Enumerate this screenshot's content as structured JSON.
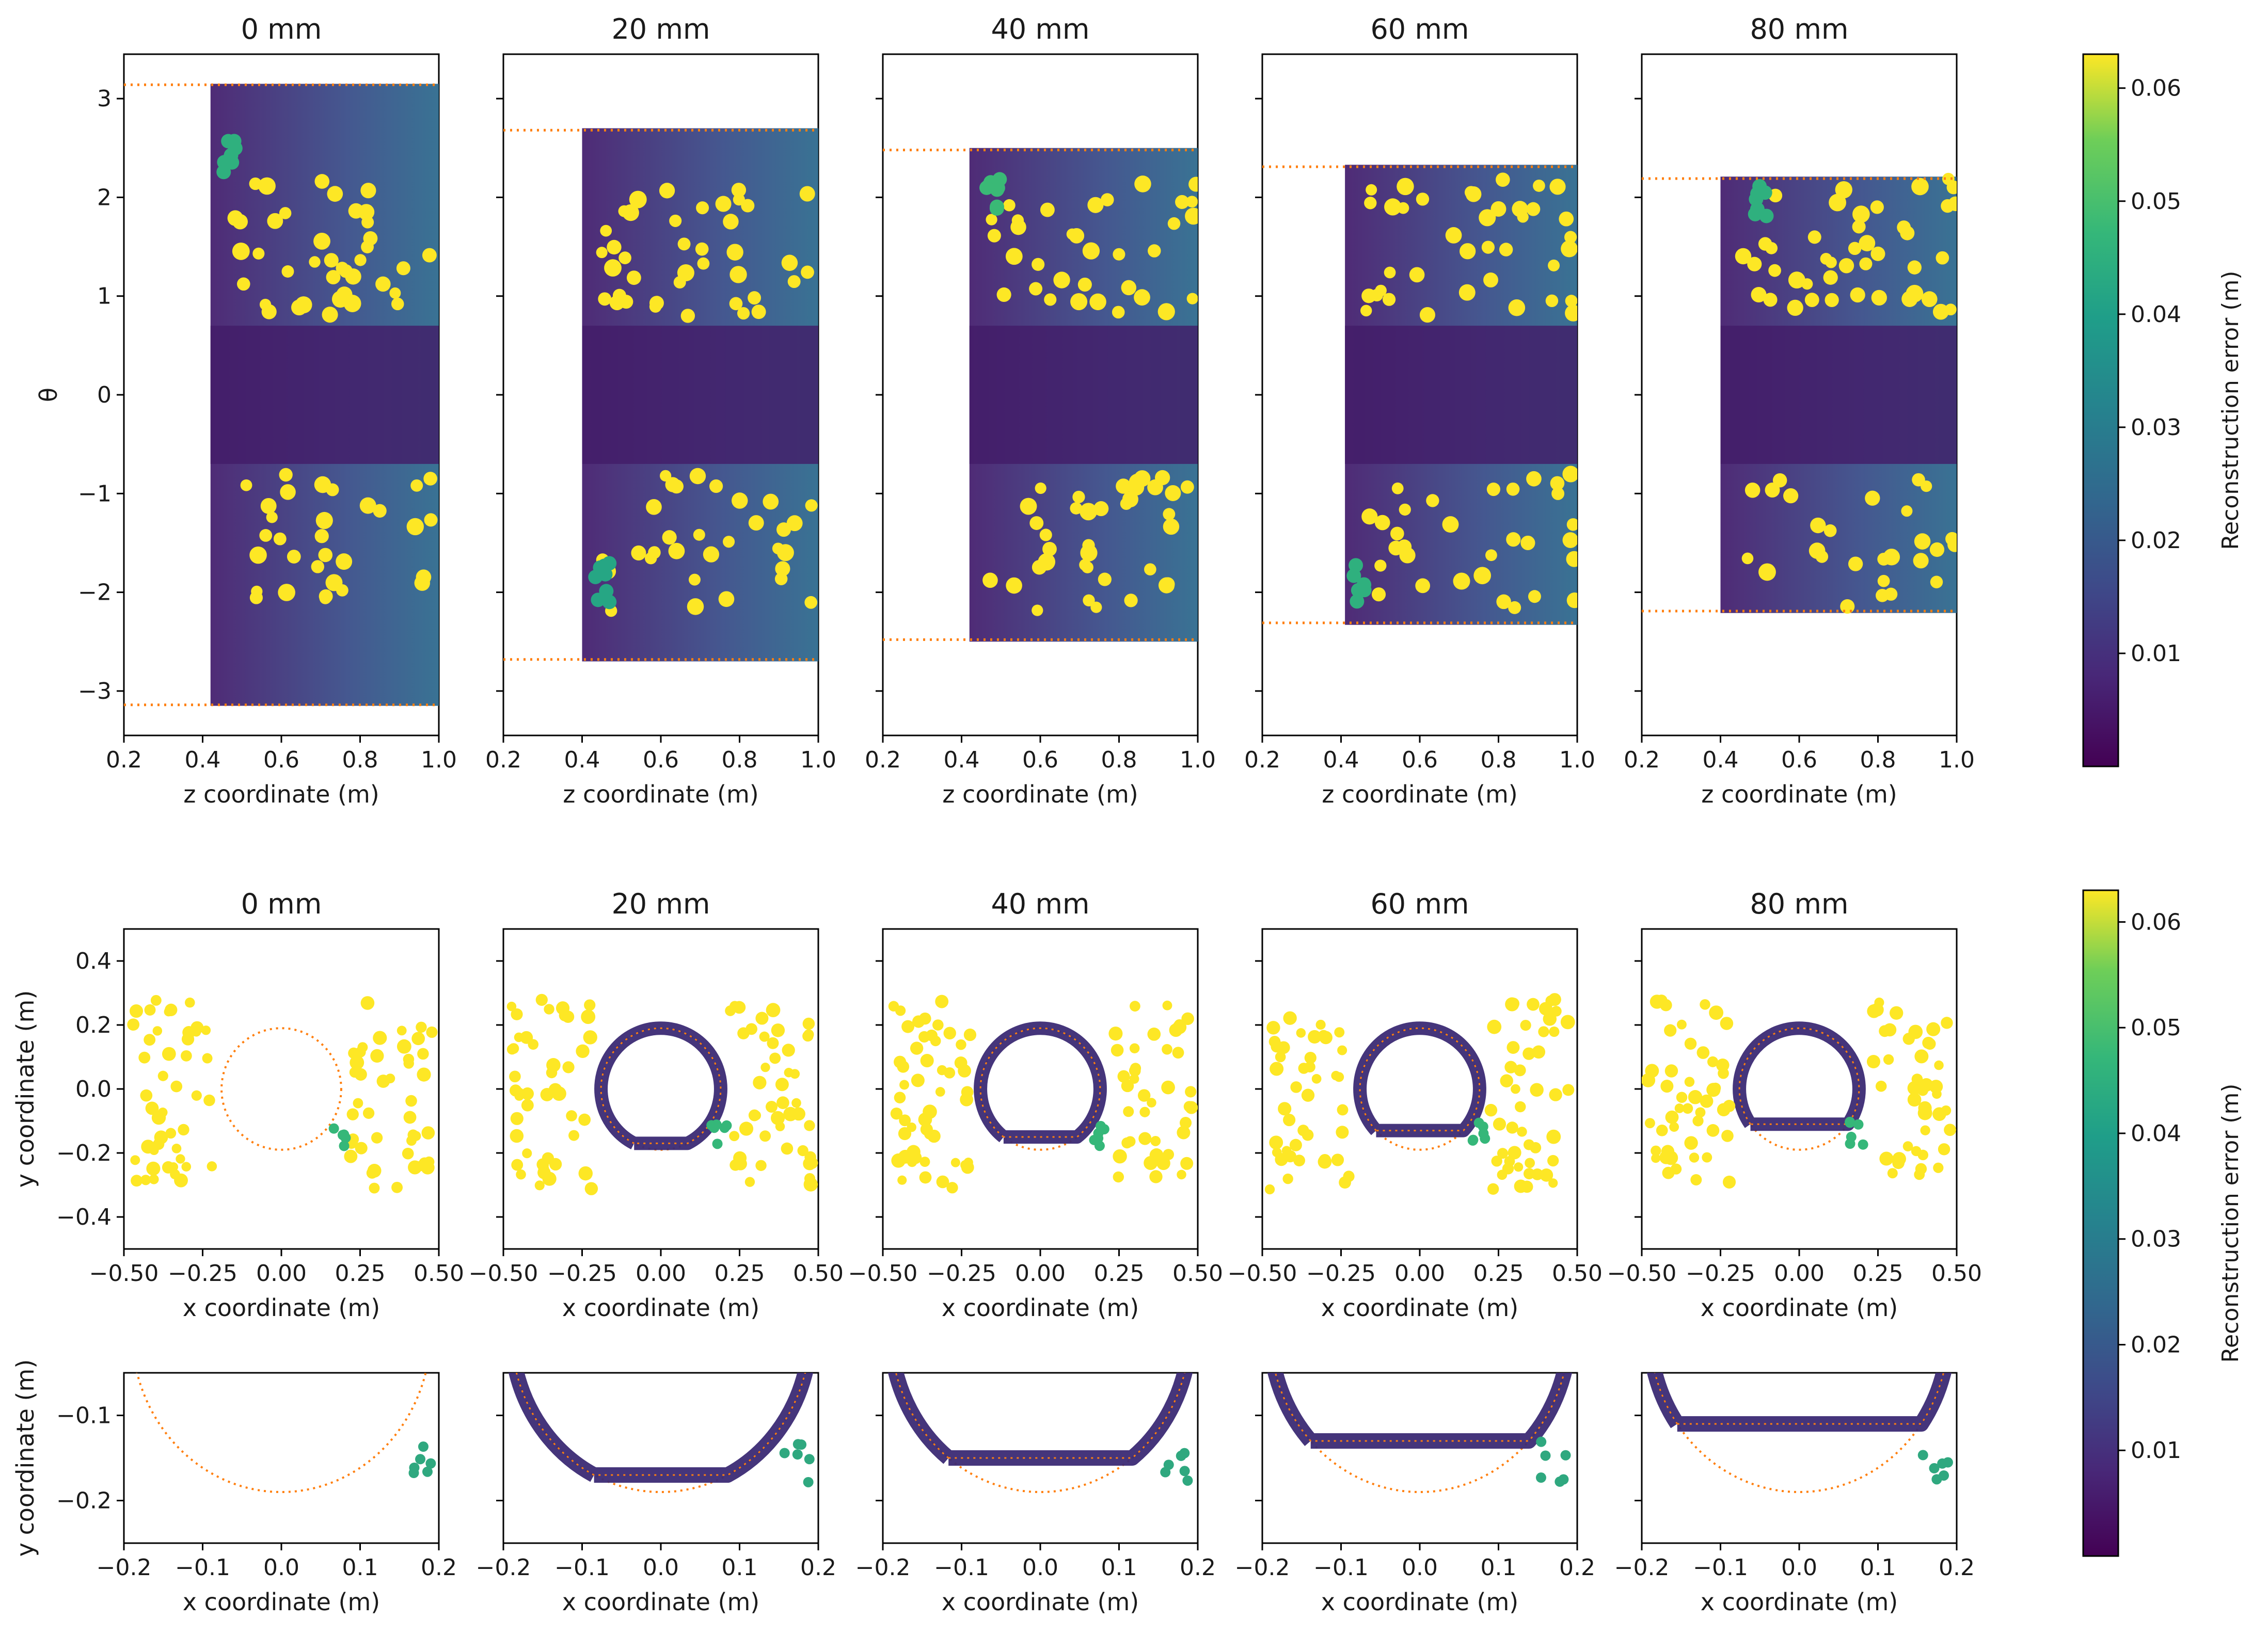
{
  "figure": {
    "colorbar": {
      "label": "Reconstruction error (m)",
      "ticks": [
        "0.01",
        "0.02",
        "0.03",
        "0.04",
        "0.05",
        "0.06"
      ],
      "tick_values": [
        0.01,
        0.02,
        0.03,
        0.04,
        0.05,
        0.06
      ],
      "range": [
        0.0,
        0.063
      ],
      "colormap": "viridis"
    },
    "colors": {
      "reference_line": "#ff7f0e",
      "low": "#440154",
      "mid": "#21918c",
      "high": "#fde725"
    }
  },
  "chart_data": [
    {
      "type": "scatter",
      "row": "theta-z",
      "panel_titles": [
        "0 mm",
        "20 mm",
        "40 mm",
        "60 mm",
        "80 mm"
      ],
      "xlabel": "z coordinate (m)",
      "ylabel": "θ",
      "xlim": [
        0.2,
        1.0
      ],
      "ylim": [
        -3.45,
        3.45
      ],
      "xticks": [
        "0.2",
        "0.4",
        "0.6",
        "0.8",
        "1.0"
      ],
      "xtick_values": [
        0.2,
        0.4,
        0.6,
        0.8,
        1.0
      ],
      "yticks": [
        "3",
        "2",
        "1",
        "0",
        "−1",
        "−2",
        "−3"
      ],
      "ytick_values": [
        3,
        2,
        1,
        0,
        -1,
        -2,
        -3
      ],
      "reference_theta_bounds": [
        3.14,
        2.68,
        2.48,
        2.31,
        2.19
      ],
      "z_start": [
        0.42,
        0.4,
        0.42,
        0.41,
        0.4
      ],
      "point_clusters": [
        {
          "panel": 0,
          "z": 0.47,
          "theta": 2.4,
          "error": 0.045
        },
        {
          "panel": 0,
          "z": 0.65,
          "theta": -1.1,
          "error": 0.062
        },
        {
          "panel": 0,
          "z": 0.8,
          "theta": -1.7,
          "error": 0.062
        },
        {
          "panel": 1,
          "z": 0.6,
          "theta": 2.0,
          "error": 0.062
        },
        {
          "panel": 1,
          "z": 0.6,
          "theta": -1.0,
          "error": 0.062
        },
        {
          "panel": 1,
          "z": 0.45,
          "theta": -1.9,
          "error": 0.042
        },
        {
          "panel": 2,
          "z": 0.7,
          "theta": 1.0,
          "error": 0.062
        },
        {
          "panel": 2,
          "z": 0.7,
          "theta": -1.5,
          "error": 0.062
        },
        {
          "panel": 2,
          "z": 0.48,
          "theta": 2.0,
          "error": 0.048
        },
        {
          "panel": 3,
          "z": 0.7,
          "theta": 1.6,
          "error": 0.062
        },
        {
          "panel": 3,
          "z": 0.65,
          "theta": -1.0,
          "error": 0.062
        },
        {
          "panel": 3,
          "z": 0.45,
          "theta": -1.9,
          "error": 0.045
        },
        {
          "panel": 4,
          "z": 0.75,
          "theta": 1.0,
          "error": 0.062
        },
        {
          "panel": 4,
          "z": 0.7,
          "theta": -1.5,
          "error": 0.062
        },
        {
          "panel": 4,
          "z": 0.5,
          "theta": 2.0,
          "error": 0.045
        }
      ]
    },
    {
      "type": "scatter",
      "row": "cross-section",
      "panel_titles": [
        "0 mm",
        "20 mm",
        "40 mm",
        "60 mm",
        "80 mm"
      ],
      "xlabel": "x coordinate (m)",
      "ylabel": "y coordinate (m)",
      "xlim": [
        -0.5,
        0.5
      ],
      "ylim": [
        -0.5,
        0.5
      ],
      "xticks": [
        "−0.50",
        "−0.25",
        "0.00",
        "0.25",
        "0.50"
      ],
      "xtick_values": [
        -0.5,
        -0.25,
        0.0,
        0.25,
        0.5
      ],
      "yticks": [
        "0.4",
        "0.2",
        "0.0",
        "−0.2",
        "−0.4"
      ],
      "ytick_values": [
        0.4,
        0.2,
        0.0,
        -0.2,
        -0.4
      ],
      "reference_radius": 0.19,
      "floor_y": [
        -0.19,
        -0.17,
        -0.15,
        -0.13,
        -0.11
      ]
    },
    {
      "type": "scatter",
      "row": "floor-zoom",
      "panel_titles": [],
      "xlabel": "x coordinate (m)",
      "ylabel": "y coordinate (m)",
      "xlim": [
        -0.2,
        0.2
      ],
      "ylim": [
        -0.25,
        -0.05
      ],
      "xticks": [
        "−0.2",
        "−0.1",
        "0.0",
        "0.1",
        "0.2"
      ],
      "xtick_values": [
        -0.2,
        -0.1,
        0.0,
        0.1,
        0.2
      ],
      "yticks": [
        "−0.1",
        "−0.2"
      ],
      "ytick_values": [
        -0.1,
        -0.2
      ],
      "reference_radius": 0.19,
      "floor_y": [
        -0.19,
        -0.17,
        -0.15,
        -0.13,
        -0.11
      ]
    }
  ]
}
